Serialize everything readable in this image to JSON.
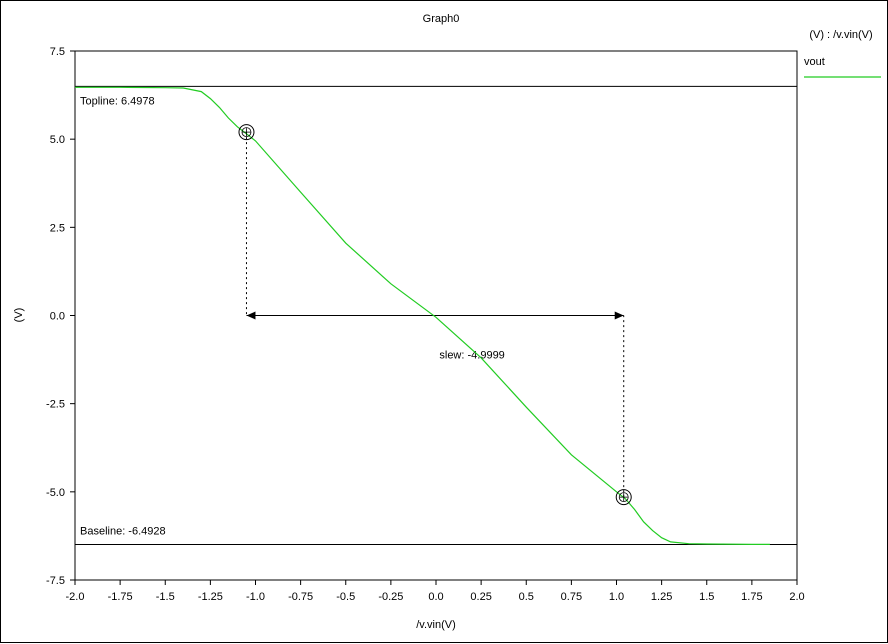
{
  "chart_data": {
    "type": "line",
    "title": "Graph0",
    "xlabel": "/v.vin(V)",
    "ylabel": "(V)",
    "xlim": [
      -2.0,
      2.0
    ],
    "ylim": [
      -7.5,
      7.5
    ],
    "x_ticks": [
      "-2.0",
      "-1.75",
      "-1.5",
      "-1.25",
      "-1.0",
      "-0.75",
      "-0.5",
      "-0.25",
      "0.0",
      "0.25",
      "0.5",
      "0.75",
      "1.0",
      "1.25",
      "1.5",
      "1.75",
      "2.0"
    ],
    "y_ticks": [
      "7.5",
      "5.0",
      "2.5",
      "0.0",
      "-2.5",
      "-5.0",
      "-7.5"
    ],
    "legend": {
      "header": "(V) : /v.vin(V)",
      "position": "right",
      "items": [
        {
          "name": "vout",
          "color": "#22cc22"
        }
      ]
    },
    "series": [
      {
        "name": "vout",
        "color": "#22cc22",
        "x": [
          -2.0,
          -1.75,
          -1.5,
          -1.4,
          -1.3,
          -1.25,
          -1.2,
          -1.15,
          -1.1,
          -1.05,
          -1.0,
          -0.75,
          -0.5,
          -0.25,
          0.0,
          0.25,
          0.5,
          0.75,
          1.0,
          1.05,
          1.1,
          1.15,
          1.2,
          1.25,
          1.3,
          1.4,
          1.5,
          1.75,
          1.85
        ],
        "y": [
          6.47,
          6.47,
          6.46,
          6.45,
          6.35,
          6.15,
          5.9,
          5.6,
          5.35,
          5.15,
          4.95,
          3.5,
          2.05,
          0.9,
          -0.05,
          -1.2,
          -2.6,
          -3.95,
          -5.0,
          -5.2,
          -5.5,
          -5.85,
          -6.1,
          -6.3,
          -6.42,
          -6.47,
          -6.48,
          -6.49,
          -6.49
        ]
      }
    ],
    "reference_lines": [
      {
        "label": "Topline: 6.4978",
        "y": 6.4978
      },
      {
        "label": "Baseline: -6.4928",
        "y": -6.4928
      }
    ],
    "markers": [
      {
        "x": -1.05,
        "y": 5.2
      },
      {
        "x": 1.04,
        "y": -5.15
      }
    ],
    "annotation": {
      "label": "slew: -4.9999",
      "y": 0.0,
      "x_from": -1.05,
      "x_to": 1.04
    }
  }
}
